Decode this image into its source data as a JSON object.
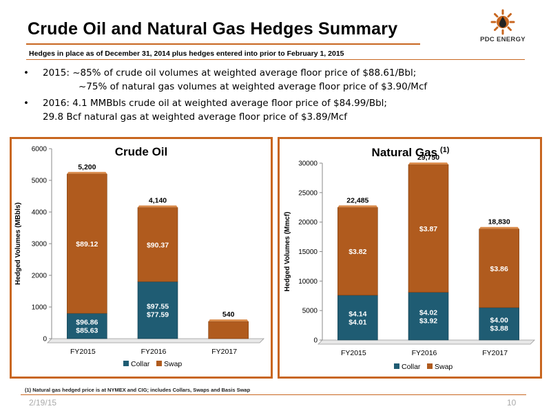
{
  "header": {
    "title": "Crude Oil and Natural Gas Hedges Summary",
    "subtitle": "Hedges in place as of December 31, 2014 plus hedges entered into prior to February 1, 2015"
  },
  "logo": {
    "text": "PDC ENERGY",
    "icon": "oil-drop-sun-icon",
    "color": "#c8661f"
  },
  "bullets": [
    {
      "marker": "•",
      "line1": "2015:  ~85% of crude oil volumes at weighted average floor price of $88.61/Bbl;",
      "line2": "~75% of natural gas volumes at weighted average floor price of $3.90/Mcf"
    },
    {
      "marker": "•",
      "line1": "2016:  4.1 MMBbls crude oil at weighted average floor price of $84.99/Bbl;",
      "line2": "29.8 Bcf natural gas at weighted average floor price of $3.89/Mcf"
    }
  ],
  "colors": {
    "collar": "#1f5c73",
    "swap": "#b05b1e",
    "accent": "#c8661f"
  },
  "chart_data": [
    {
      "type": "bar",
      "stacked": true,
      "title": "Crude Oil",
      "title_sup": "",
      "ylabel": "Hedged Volumes (MBbls)",
      "ylim": [
        0,
        6000
      ],
      "yticks": [
        0,
        1000,
        2000,
        3000,
        4000,
        5000,
        6000
      ],
      "categories": [
        "FY2015",
        "FY2016",
        "FY2017"
      ],
      "series": [
        {
          "name": "Collar",
          "values": [
            800,
            1800,
            0
          ],
          "labels": [
            "$96.86\n$85.63",
            "$97.55\n$77.59",
            ""
          ]
        },
        {
          "name": "Swap",
          "values": [
            4400,
            2340,
            540
          ],
          "labels": [
            "$89.12",
            "$90.37",
            ""
          ]
        }
      ],
      "totals": [
        "5,200",
        "4,140",
        "540"
      ],
      "legend": "bottom"
    },
    {
      "type": "bar",
      "stacked": true,
      "title": "Natural Gas",
      "title_sup": "(1)",
      "ylabel": "Hedged Volumes (Mmcf)",
      "ylim": [
        0,
        30000
      ],
      "yticks": [
        0,
        5000,
        10000,
        15000,
        20000,
        25000,
        30000
      ],
      "categories": [
        "FY2015",
        "FY2016",
        "FY2017"
      ],
      "series": [
        {
          "name": "Collar",
          "values": [
            7600,
            8100,
            5500
          ],
          "labels": [
            "$4.14\n$4.01",
            "$4.02\n$3.92",
            "$4.00\n$3.88"
          ]
        },
        {
          "name": "Swap",
          "values": [
            14885,
            21650,
            13330
          ],
          "labels": [
            "$3.82",
            "$3.87",
            "$3.86"
          ]
        }
      ],
      "totals": [
        "22,485",
        "29,750",
        "18,830"
      ],
      "legend": "bottom"
    }
  ],
  "footer": {
    "footnote": "(1)     Natural gas hedged price is at NYMEX and CIG; includes Collars, Swaps and Basis Swap",
    "date": "2/19/15",
    "page": "10"
  }
}
